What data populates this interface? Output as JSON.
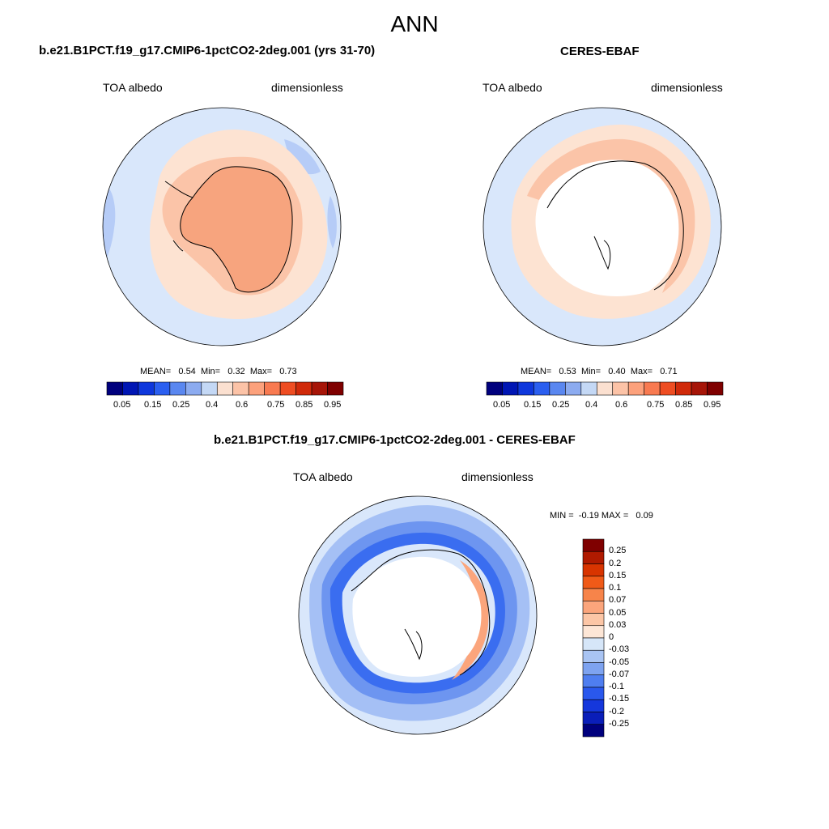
{
  "figure": {
    "title": "ANN"
  },
  "panels": [
    {
      "id": "model",
      "title": "b.e21.B1PCT.f19_g17.CMIP6-1pctCO2-2deg.001 (yrs 31-70)",
      "left_label": "TOA albedo",
      "right_label": "dimensionless",
      "stats": {
        "mean_label": "MEAN=",
        "mean": "0.54",
        "min_label": "Min=",
        "min": "0.32",
        "max_label": "Max=",
        "max": "0.73"
      },
      "colorbar": {
        "colors": [
          "#00007d",
          "#0016b4",
          "#0e37dc",
          "#2b5ff0",
          "#5a87f0",
          "#8cabf0",
          "#c4d8f5",
          "#fbe0d0",
          "#fcc3a7",
          "#fca17c",
          "#f87a51",
          "#ee4d22",
          "#d02a0a",
          "#a61508",
          "#7f0000"
        ],
        "tick_labels": [
          "0.05",
          "0.15",
          "0.25",
          "0.4",
          "0.6",
          "0.75",
          "0.85",
          "0.95"
        ]
      }
    },
    {
      "id": "obs",
      "title": "CERES-EBAF",
      "left_label": "TOA albedo",
      "right_label": "dimensionless",
      "stats": {
        "mean_label": "MEAN=",
        "mean": "0.53",
        "min_label": "Min=",
        "min": "0.40",
        "max_label": "Max=",
        "max": "0.71"
      },
      "colorbar": {
        "colors": [
          "#00007d",
          "#0016b4",
          "#0e37dc",
          "#2b5ff0",
          "#5a87f0",
          "#8cabf0",
          "#c4d8f5",
          "#fbe0d0",
          "#fcc3a7",
          "#fca17c",
          "#f87a51",
          "#ee4d22",
          "#d02a0a",
          "#a61508",
          "#7f0000"
        ],
        "tick_labels": [
          "0.05",
          "0.15",
          "0.25",
          "0.4",
          "0.6",
          "0.75",
          "0.85",
          "0.95"
        ]
      }
    },
    {
      "id": "diff",
      "title": "b.e21.B1PCT.f19_g17.CMIP6-1pctCO2-2deg.001 - CERES-EBAF",
      "left_label": "TOA albedo",
      "right_label": "dimensionless",
      "stats": {
        "min_label": "MIN =",
        "min": "-0.19",
        "max_label": "MAX =",
        "max": "0.09"
      },
      "colorbar": {
        "colors": [
          "#7f0000",
          "#b01a00",
          "#d83400",
          "#f05a18",
          "#f7844a",
          "#fba57c",
          "#fcc6a6",
          "#fde6d6",
          "#d6e6f8",
          "#a9c4f3",
          "#7ea3f0",
          "#4f7ef0",
          "#2a58ed",
          "#1537dc",
          "#0a1eb9",
          "#00007d"
        ],
        "tick_labels": [
          "0.25",
          "0.2",
          "0.15",
          "0.1",
          "0.07",
          "0.05",
          "0.03",
          "0",
          "-0.03",
          "-0.05",
          "-0.07",
          "-0.1",
          "-0.15",
          "-0.2",
          "-0.25"
        ]
      }
    }
  ],
  "legend_colors": {
    "ocean_light": "#d9e7fb",
    "ocean_mid": "#b6ccf7",
    "peach": "#fde3d2",
    "salmon_light": "#fbc4a8",
    "salmon": "#f7a47e",
    "white": "#ffffff",
    "blue_deep": "#3a6df0",
    "blue_mid": "#6d95f0",
    "blue_light": "#a5c0f5"
  }
}
